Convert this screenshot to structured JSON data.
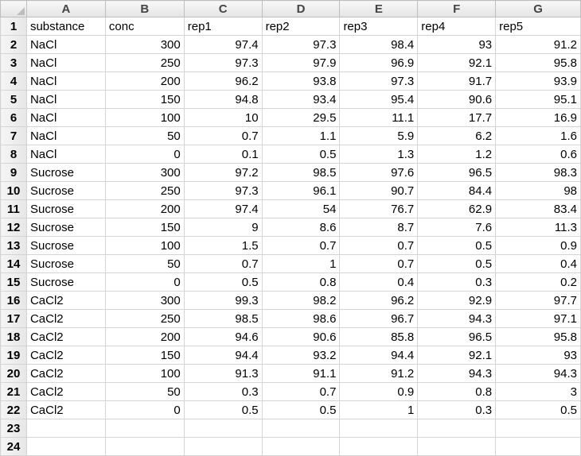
{
  "columns": [
    "A",
    "B",
    "C",
    "D",
    "E",
    "F",
    "G"
  ],
  "header_row": [
    "substance",
    "conc",
    "rep1",
    "rep2",
    "rep3",
    "rep4",
    "rep5"
  ],
  "rows": [
    [
      "NaCl",
      "300",
      "97.4",
      "97.3",
      "98.4",
      "93",
      "91.2"
    ],
    [
      "NaCl",
      "250",
      "97.3",
      "97.9",
      "96.9",
      "92.1",
      "95.8"
    ],
    [
      "NaCl",
      "200",
      "96.2",
      "93.8",
      "97.3",
      "91.7",
      "93.9"
    ],
    [
      "NaCl",
      "150",
      "94.8",
      "93.4",
      "95.4",
      "90.6",
      "95.1"
    ],
    [
      "NaCl",
      "100",
      "10",
      "29.5",
      "11.1",
      "17.7",
      "16.9"
    ],
    [
      "NaCl",
      "50",
      "0.7",
      "1.1",
      "5.9",
      "6.2",
      "1.6"
    ],
    [
      "NaCl",
      "0",
      "0.1",
      "0.5",
      "1.3",
      "1.2",
      "0.6"
    ],
    [
      "Sucrose",
      "300",
      "97.2",
      "98.5",
      "97.6",
      "96.5",
      "98.3"
    ],
    [
      "Sucrose",
      "250",
      "97.3",
      "96.1",
      "90.7",
      "84.4",
      "98"
    ],
    [
      "Sucrose",
      "200",
      "97.4",
      "54",
      "76.7",
      "62.9",
      "83.4"
    ],
    [
      "Sucrose",
      "150",
      "9",
      "8.6",
      "8.7",
      "7.6",
      "11.3"
    ],
    [
      "Sucrose",
      "100",
      "1.5",
      "0.7",
      "0.7",
      "0.5",
      "0.9"
    ],
    [
      "Sucrose",
      "50",
      "0.7",
      "1",
      "0.7",
      "0.5",
      "0.4"
    ],
    [
      "Sucrose",
      "0",
      "0.5",
      "0.8",
      "0.4",
      "0.3",
      "0.2"
    ],
    [
      "CaCl2",
      "300",
      "99.3",
      "98.2",
      "96.2",
      "92.9",
      "97.7"
    ],
    [
      "CaCl2",
      "250",
      "98.5",
      "98.6",
      "96.7",
      "94.3",
      "97.1"
    ],
    [
      "CaCl2",
      "200",
      "94.6",
      "90.6",
      "85.8",
      "96.5",
      "95.8"
    ],
    [
      "CaCl2",
      "150",
      "94.4",
      "93.2",
      "94.4",
      "92.1",
      "93"
    ],
    [
      "CaCl2",
      "100",
      "91.3",
      "91.1",
      "91.2",
      "94.3",
      "94.3"
    ],
    [
      "CaCl2",
      "50",
      "0.3",
      "0.7",
      "0.9",
      "0.8",
      "3"
    ],
    [
      "CaCl2",
      "0",
      "0.5",
      "0.5",
      "1",
      "0.3",
      "0.5"
    ]
  ],
  "row_numbers": [
    "1",
    "2",
    "3",
    "4",
    "5",
    "6",
    "7",
    "8",
    "9",
    "10",
    "11",
    "12",
    "13",
    "14",
    "15",
    "16",
    "17",
    "18",
    "19",
    "20",
    "21",
    "22",
    "23",
    "24"
  ]
}
